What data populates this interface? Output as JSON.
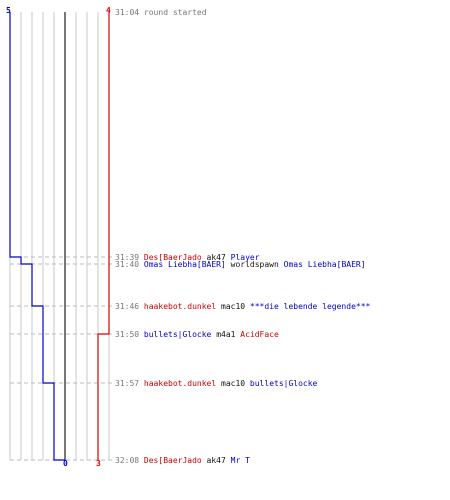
{
  "teams": {
    "blue": {
      "color": "#0000cc",
      "start_score": "5",
      "end_score": "0"
    },
    "red": {
      "color": "#dd0000",
      "start_score": "4",
      "end_score": "3"
    }
  },
  "log_color_gray": "#777777",
  "events": [
    {
      "time": "31:04",
      "text": "round started",
      "blue_after": 5,
      "red_after": 4
    },
    {
      "time": "31:39",
      "killer": "Des[BaerJado",
      "killer_team": "red",
      "weapon": "ak47",
      "victim": "Player",
      "victim_team": "blue",
      "blue_after": 4,
      "red_after": 4
    },
    {
      "time": "31:40",
      "killer": "Omas Liebha[BAER]",
      "killer_team": "blue",
      "weapon": "worldspawn",
      "victim": "Omas Liebha[BAER]",
      "victim_team": "blue",
      "blue_after": 3,
      "red_after": 4
    },
    {
      "time": "31:46",
      "killer": "haakebot.dunkel",
      "killer_team": "red",
      "weapon": "mac10",
      "victim": "***die lebende legende***",
      "victim_team": "blue",
      "blue_after": 2,
      "red_after": 4
    },
    {
      "time": "31:50",
      "killer": "bullets|Glocke",
      "killer_team": "blue",
      "weapon": "m4a1",
      "victim": "AcidFace",
      "victim_team": "red",
      "blue_after": 2,
      "red_after": 3
    },
    {
      "time": "31:57",
      "killer": "haakebot.dunkel",
      "killer_team": "red",
      "weapon": "mac10",
      "victim": "bullets|Glocke",
      "victim_team": "blue",
      "blue_after": 1,
      "red_after": 3
    },
    {
      "time": "32:08",
      "killer": "Des[BaerJado",
      "killer_team": "red",
      "weapon": "ak47",
      "victim": "Mr T",
      "victim_team": "blue",
      "blue_after": 0,
      "red_after": 3
    }
  ]
}
